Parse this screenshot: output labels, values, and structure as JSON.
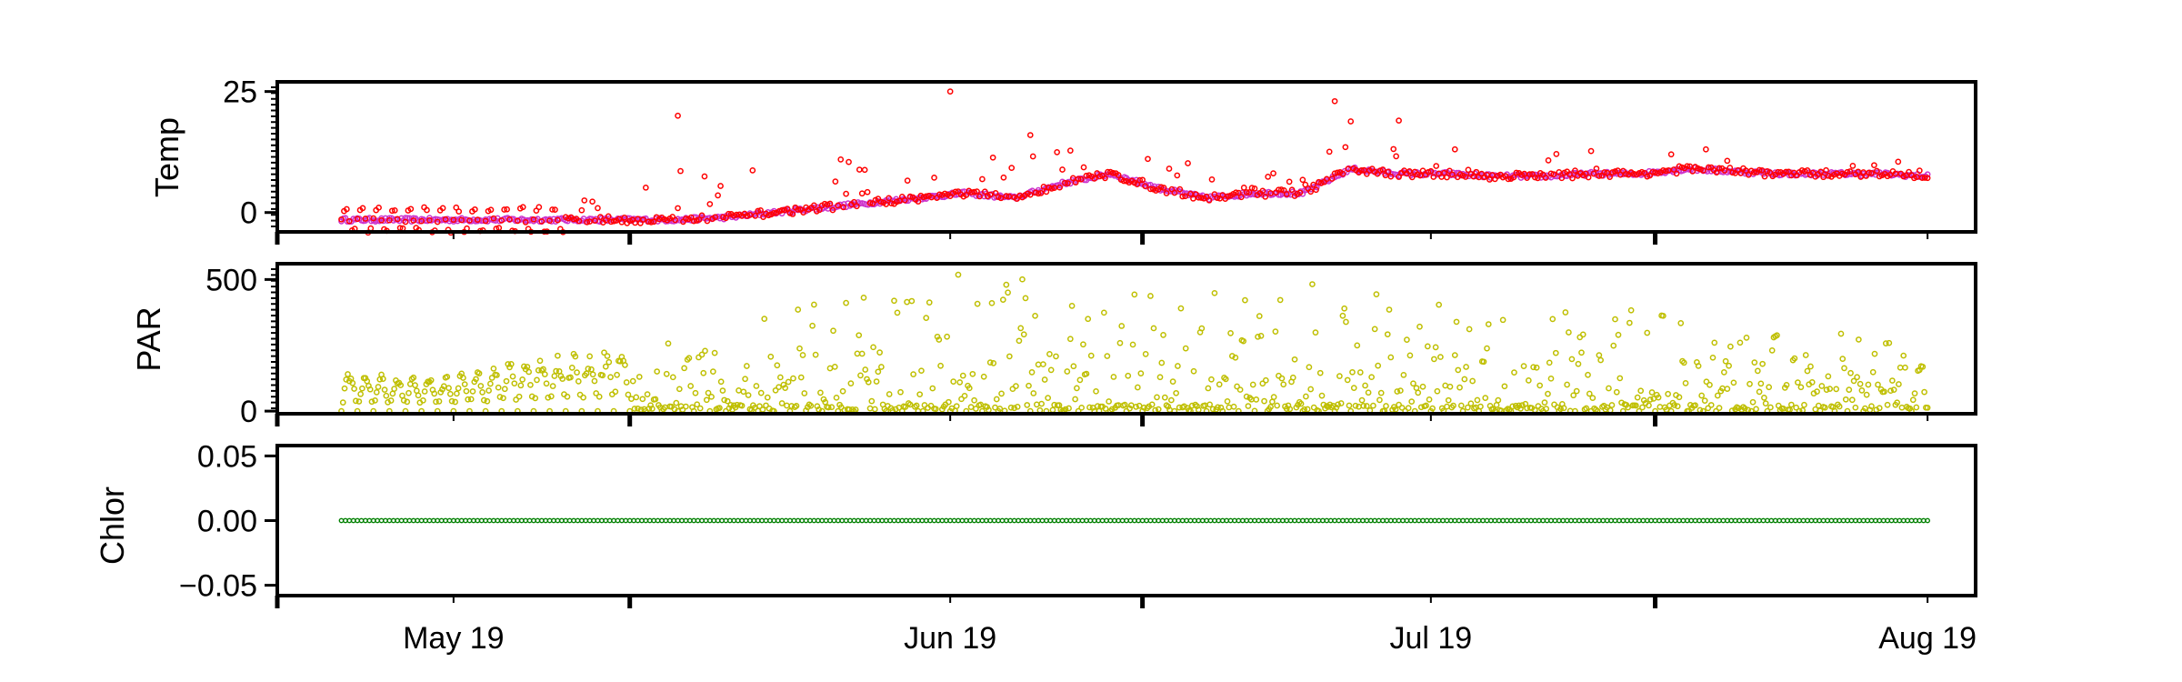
{
  "chart_data": [
    {
      "type": "scatter",
      "panel": "temp",
      "ylabel": "Temp",
      "ylim": [
        -4,
        27
      ],
      "yticks": [
        0,
        25
      ],
      "ytick_labels": [
        "0",
        "25"
      ],
      "grid": false,
      "legend": "none",
      "series": [
        {
          "color": "#ff0000",
          "marker": "open-circle",
          "x": [
            "2019-04-24",
            "2019-04-27",
            "2019-04-30",
            "2019-05-03",
            "2019-05-06",
            "2019-05-09",
            "2019-05-12",
            "2019-05-15",
            "2019-05-18",
            "2019-05-21",
            "2019-05-24",
            "2019-05-27",
            "2019-05-30",
            "2019-06-02",
            "2019-06-05",
            "2019-06-08",
            "2019-06-11",
            "2019-06-14",
            "2019-06-17",
            "2019-06-20",
            "2019-06-23",
            "2019-06-26",
            "2019-06-29",
            "2019-07-02",
            "2019-07-05",
            "2019-07-08",
            "2019-07-11",
            "2019-07-14",
            "2019-07-17",
            "2019-07-20",
            "2019-07-23",
            "2019-07-26",
            "2019-07-29",
            "2019-08-01"
          ],
          "y": [
            2,
            -2,
            1,
            0,
            3,
            1,
            2,
            5,
            4,
            6,
            9,
            7,
            4,
            10,
            6,
            12,
            5,
            9,
            6,
            4,
            5,
            15,
            11,
            9,
            10,
            8,
            9,
            9,
            12,
            10,
            8,
            9,
            8,
            7
          ]
        },
        {
          "color": "#cc33cc",
          "marker": "open-circle",
          "x": [
            "2019-04-24",
            "2019-04-27",
            "2019-04-30",
            "2019-05-03",
            "2019-05-06",
            "2019-05-09",
            "2019-05-12",
            "2019-05-15",
            "2019-05-18",
            "2019-05-21",
            "2019-05-24",
            "2019-05-27",
            "2019-05-30",
            "2019-06-02",
            "2019-06-05",
            "2019-06-08",
            "2019-06-11",
            "2019-06-14",
            "2019-06-17",
            "2019-06-20",
            "2019-06-23",
            "2019-06-26",
            "2019-06-29",
            "2019-07-02",
            "2019-07-05",
            "2019-07-08",
            "2019-07-11",
            "2019-07-14",
            "2019-07-17",
            "2019-07-20",
            "2019-07-23",
            "2019-07-26",
            "2019-07-29",
            "2019-08-01"
          ],
          "y": [
            -1.5,
            -1.5,
            -1.5,
            -1.5,
            -1.5,
            -1.5,
            -1.5,
            -1.5,
            -1,
            0,
            1,
            2,
            3,
            4,
            3,
            6,
            8,
            5,
            3,
            4,
            4,
            9,
            8,
            8,
            7.5,
            7.5,
            8,
            8,
            9,
            8.5,
            8,
            8,
            8,
            7.5
          ]
        }
      ],
      "spikes": [
        {
          "x": "2019-06-01",
          "y": 25
        },
        {
          "x": "2019-05-15",
          "y": 20
        },
        {
          "x": "2019-06-25",
          "y": 23
        },
        {
          "x": "2019-06-06",
          "y": 16
        },
        {
          "x": "2019-06-29",
          "y": 19
        }
      ]
    },
    {
      "type": "scatter",
      "panel": "par",
      "ylabel": "PAR",
      "ylim": [
        -10,
        560
      ],
      "yticks": [
        0,
        500
      ],
      "ytick_labels": [
        "0",
        "500"
      ],
      "grid": false,
      "legend": "none",
      "series": [
        {
          "color": "#bfbf00",
          "marker": "open-circle",
          "daily_peak": {
            "x": [
              "2019-04-24",
              "2019-04-30",
              "2019-05-06",
              "2019-05-12",
              "2019-05-18",
              "2019-05-24",
              "2019-05-30",
              "2019-06-05",
              "2019-06-11",
              "2019-06-17",
              "2019-06-23",
              "2019-06-29",
              "2019-07-05",
              "2019-07-11",
              "2019-07-17",
              "2019-07-23",
              "2019-07-29",
              "2019-08-01"
            ],
            "y": [
              150,
              130,
              210,
              250,
              320,
              450,
              530,
              560,
              480,
              450,
              560,
              450,
              380,
              400,
              380,
              360,
              330,
              200
            ]
          }
        }
      ]
    },
    {
      "type": "scatter",
      "panel": "chlor",
      "ylabel": "Chlor",
      "xlabel": "",
      "ylim": [
        -0.058,
        0.058
      ],
      "yticks": [
        -0.05,
        0.0,
        0.05
      ],
      "ytick_labels": [
        "−0.05",
        "0.00",
        "0.05"
      ],
      "grid": false,
      "legend": "none",
      "series": [
        {
          "color": "#008000",
          "marker": "open-circle",
          "x": [
            "2019-04-24",
            "2019-08-01"
          ],
          "y": [
            0,
            0
          ]
        }
      ]
    }
  ],
  "x_axis": {
    "start": "2019-04-20",
    "end": "2019-08-04",
    "tick_dates": [
      "2019-05-01",
      "2019-06-01",
      "2019-07-01",
      "2019-08-01"
    ],
    "tick_labels": [
      "May 19",
      "Jun 19",
      "Jul 19",
      "Aug 19"
    ],
    "minor_tick_dates": [
      "2019-04-20",
      "2019-05-12",
      "2019-06-13",
      "2019-07-15"
    ]
  }
}
